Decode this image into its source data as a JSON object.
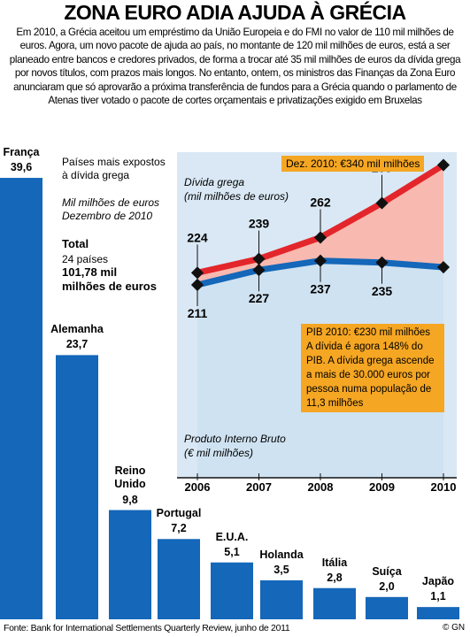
{
  "title": "ZONA EURO ADIA AJUDA À GRÉCIA",
  "intro": "Em 2010, a Grécia aceitou um empréstimo da União Europeia e do FMI no valor de 110 mil milhões de euros. Agora, um novo pacote de ajuda ao país, no montante de 120 mil milhões de euros, está a ser planeado entre bancos e credores privados, de forma a trocar até 35 mil milhões de euros da dívida grega por novos títulos, com prazos mais longos. No entanto, ontem, os ministros das Finanças da Zona Euro anunciaram que só aprovarão a próxima transferência de fundos para a Grécia quando o parlamento de Atenas tiver votado o pacote de cortes orçamentais e privatizações exigido em Bruxelas",
  "source": "Fonte: Bank for International Settlements Quarterly Review, junho de 2011",
  "credit": "© GN",
  "chart_data": [
    {
      "type": "bar",
      "title": "Países mais expostos\nà dívida grega",
      "subtitle": "Mil milhões de euros\nDezembro de 2010",
      "annotations": [
        "Total",
        "24 países",
        "101,78 mil\nmilhões de euros"
      ],
      "categories": [
        "França",
        "Alemanha",
        "Reino\nUnido",
        "Portugal",
        "E.U.A.",
        "Holanda",
        "Itália",
        "Suíça",
        "Japão"
      ],
      "values": [
        39.6,
        23.7,
        9.8,
        7.2,
        5.1,
        3.5,
        2.8,
        2.0,
        1.1
      ],
      "value_labels": [
        "39,6",
        "23,7",
        "9,8",
        "7,2",
        "5,1",
        "3,5",
        "2,8",
        "2,0",
        "1,1"
      ],
      "color": "#1467b9"
    },
    {
      "type": "line",
      "x": [
        2006,
        2007,
        2008,
        2009,
        2010
      ],
      "series": [
        {
          "name": "Dívida grega\n(mil milhões de euros)",
          "color": "#e3262b",
          "fill": "#f7b9b0",
          "values": [
            224,
            239,
            262,
            299,
            340
          ]
        },
        {
          "name": "Produto Interno Bruto\n(€ mil milhões)",
          "color": "#1467b9",
          "fill": "#cfe2f1",
          "values": [
            211,
            227,
            237,
            235,
            230
          ]
        }
      ],
      "annotations": [
        "Dez. 2010: €340 mil milhões",
        "PIB 2010: €230 mil milhões\nA dívida é agora 148% do PIB. A dívida grega ascende a mais de 30.000 euros por pessoa numa população de 11,3 milhões"
      ]
    }
  ]
}
